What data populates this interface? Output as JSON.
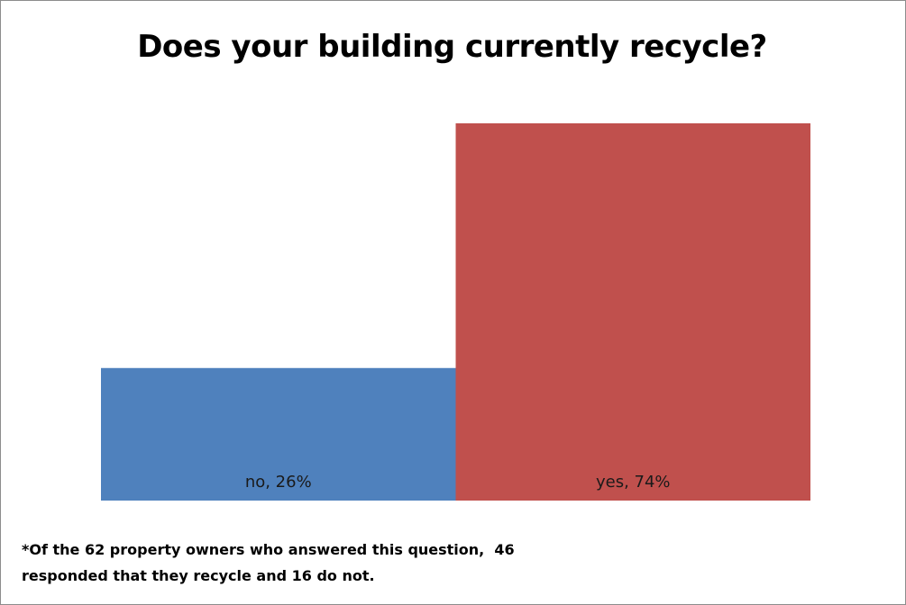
{
  "chart_data": {
    "type": "bar",
    "title": "Does your building currently recycle?",
    "categories": [
      "no",
      "yes"
    ],
    "values": [
      26,
      74
    ],
    "value_unit": "%",
    "data_labels": [
      "no, 26%",
      "yes, 74%"
    ],
    "colors": [
      "#4f81bd",
      "#c0504d"
    ],
    "ylim": [
      0,
      80
    ],
    "xlabel": "",
    "ylabel": "",
    "grid": false,
    "legend": "none",
    "axes_visible": false
  },
  "footnote": {
    "line1": "*Of the 62 property owners who answered this question,  46",
    "line2": "responded that they recycle and 16 do not."
  }
}
